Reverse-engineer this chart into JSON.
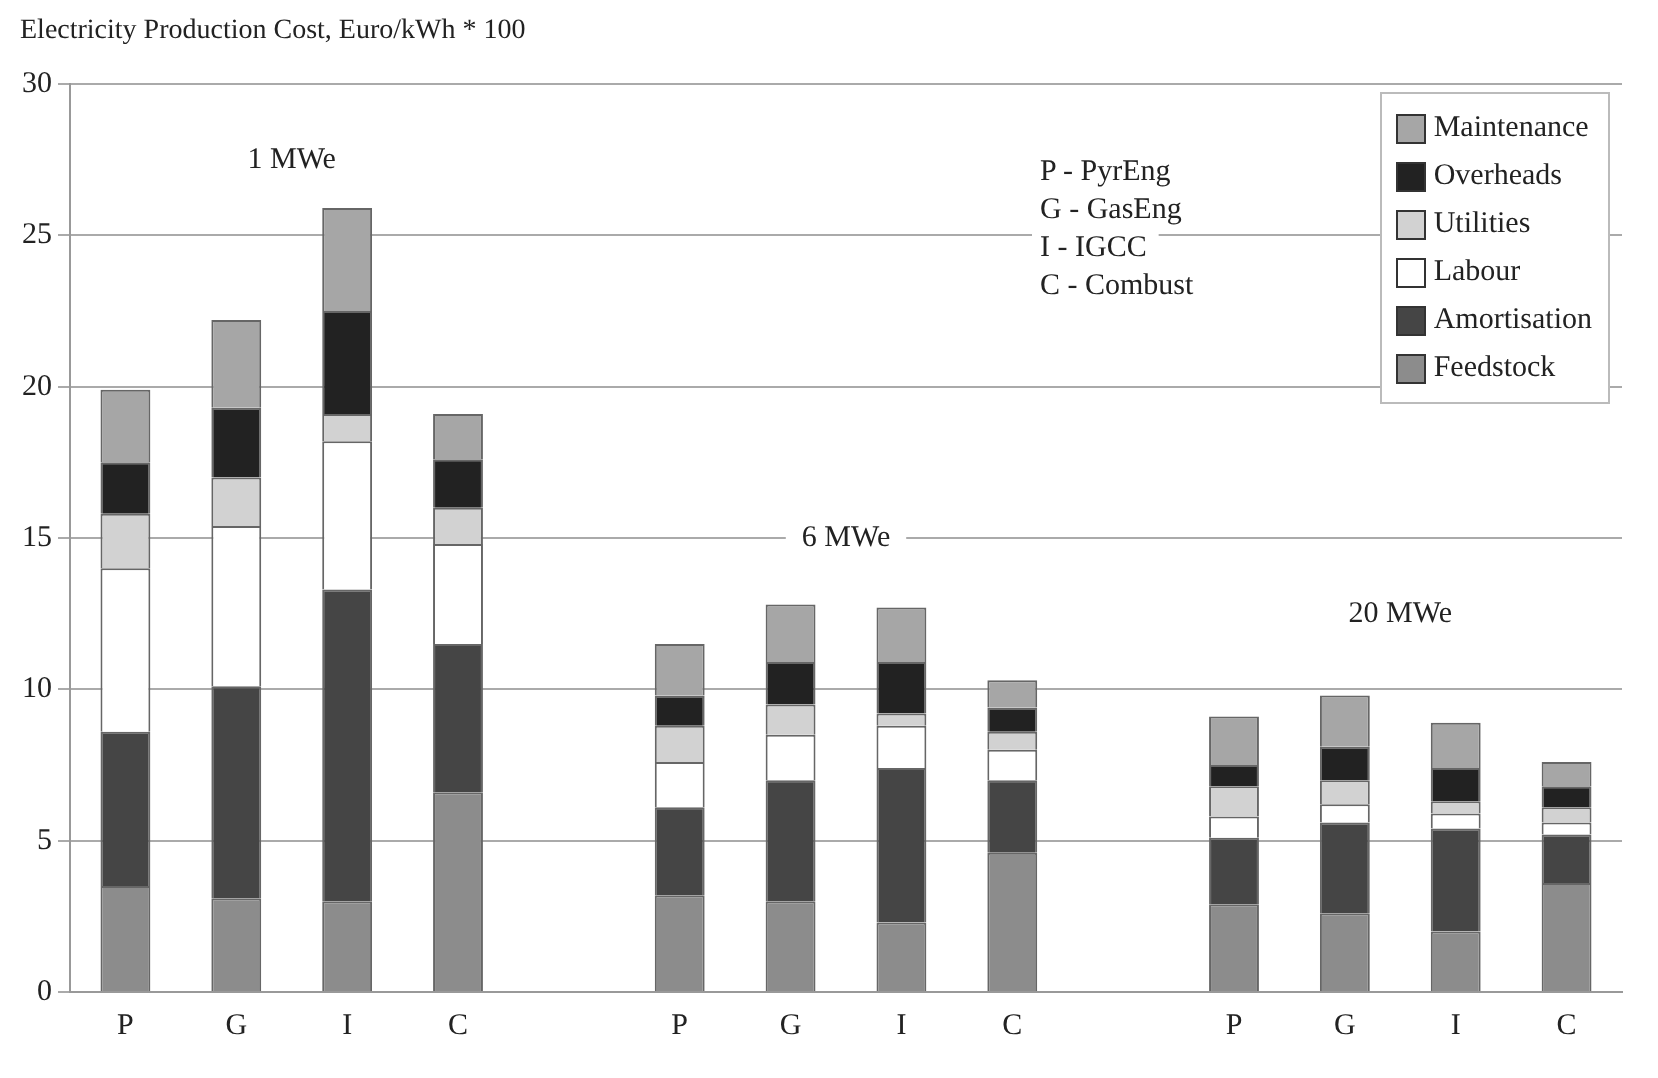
{
  "chart_data": {
    "type": "bar",
    "stacked": true,
    "ylabel": "Electricity Production Cost, Euro/kWh * 100",
    "categories": [
      "P",
      "G",
      "I",
      "C",
      null,
      "P",
      "G",
      "I",
      "C",
      null,
      "P",
      "G",
      "I",
      "C"
    ],
    "series": [
      {
        "name": "Feedstock",
        "color": "#8c8c8c",
        "values": [
          3.5,
          3.1,
          3.0,
          6.6,
          null,
          3.2,
          3.0,
          2.3,
          4.6,
          null,
          2.9,
          2.6,
          2.0,
          3.6
        ]
      },
      {
        "name": "Amortisation",
        "color": "#454545",
        "values": [
          5.1,
          7.0,
          10.3,
          4.9,
          null,
          2.9,
          4.0,
          5.1,
          2.4,
          null,
          2.2,
          3.0,
          3.4,
          1.6
        ]
      },
      {
        "name": "Labour",
        "color": "#ffffff",
        "values": [
          5.4,
          5.3,
          4.9,
          3.3,
          null,
          1.5,
          1.5,
          1.4,
          1.0,
          null,
          0.7,
          0.6,
          0.5,
          0.4
        ]
      },
      {
        "name": "Utilities",
        "color": "#d2d2d2",
        "values": [
          1.8,
          1.6,
          0.9,
          1.2,
          null,
          1.2,
          1.0,
          0.4,
          0.6,
          null,
          1.0,
          0.8,
          0.4,
          0.5
        ]
      },
      {
        "name": "Overheads",
        "color": "#222222",
        "values": [
          1.7,
          2.3,
          3.4,
          1.6,
          null,
          1.0,
          1.4,
          1.7,
          0.8,
          null,
          0.7,
          1.1,
          1.1,
          0.7
        ]
      },
      {
        "name": "Maintenance",
        "color": "#a6a6a6",
        "values": [
          2.4,
          2.9,
          3.4,
          1.5,
          null,
          1.7,
          1.9,
          1.8,
          0.9,
          null,
          1.6,
          1.7,
          1.5,
          0.8
        ]
      }
    ],
    "ylim": [
      0,
      30
    ],
    "yticks": [
      0,
      5,
      10,
      15,
      20,
      25,
      30
    ],
    "grid": "y",
    "legend": "top right",
    "annotations": [
      "1 MWe",
      "6 MWe",
      "20 MWe",
      "P - PyrEng",
      "G - GasEng",
      "I - IGCC",
      "C - Combust"
    ]
  }
}
